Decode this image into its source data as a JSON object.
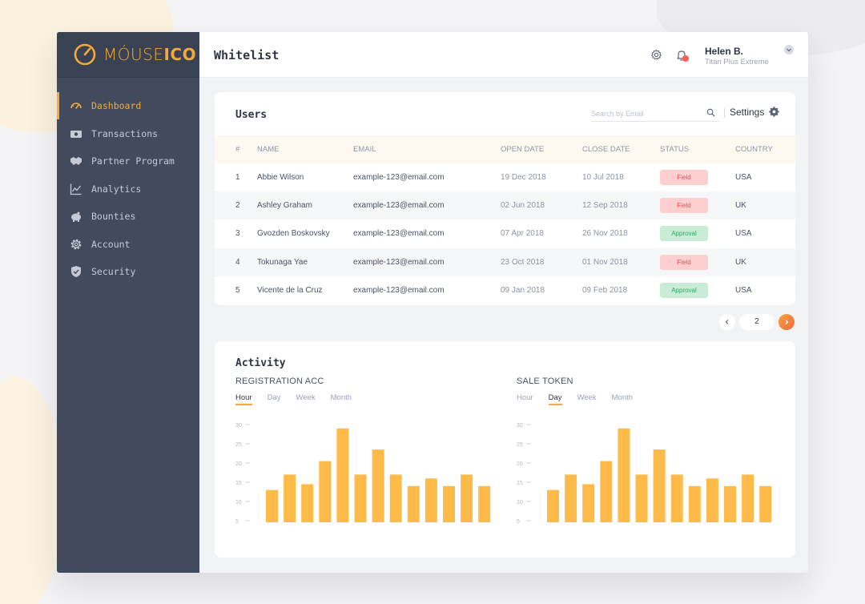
{
  "app": {
    "logo": {
      "text_light": "MÓUSE",
      "text_bold": "ICO"
    }
  },
  "sidebar": {
    "items": [
      {
        "label": "Dashboard",
        "icon": "gauge-icon",
        "active": true
      },
      {
        "label": "Transactions",
        "icon": "money-icon",
        "active": false
      },
      {
        "label": "Partner Program",
        "icon": "handshake-icon",
        "active": false
      },
      {
        "label": "Analytics",
        "icon": "line-chart-icon",
        "active": false
      },
      {
        "label": "Bounties",
        "icon": "piggy-bank-icon",
        "active": false
      },
      {
        "label": "Account",
        "icon": "gear-icon",
        "active": false
      },
      {
        "label": "Security",
        "icon": "shield-icon",
        "active": false
      }
    ]
  },
  "header": {
    "title": "Whitelist",
    "user_name": "Helen B.",
    "user_plan": "Titan Plus Extreme"
  },
  "users": {
    "title": "Users",
    "search_placeholder": "Search by Email",
    "settings_label": "Settings",
    "columns": [
      "#",
      "NAME",
      "EMAIL",
      "OPEN DATE",
      "CLOSE DATE",
      "STATUS",
      "COUNTRY"
    ],
    "rows": [
      {
        "num": "1",
        "name": "Abbie Wilson",
        "email": "example-123@email.com",
        "open": "19 Dec 2018",
        "close": "10 Jul 2018",
        "status": "Field",
        "country": "USA"
      },
      {
        "num": "2",
        "name": "Ashley Graham",
        "email": "example-123@email.com",
        "open": "02 Jun 2018",
        "close": "12 Sep 2018",
        "status": "Field",
        "country": "UK"
      },
      {
        "num": "3",
        "name": "Gvozden Boskovsky",
        "email": "example-123@email.com",
        "open": "07 Apr 2018",
        "close": "26 Nov 2018",
        "status": "Approval",
        "country": "USA"
      },
      {
        "num": "4",
        "name": "Tokunaga Yae",
        "email": "example-123@email.com",
        "open": "23 Oct 2018",
        "close": "01 Nov 2018",
        "status": "Field",
        "country": "UK"
      },
      {
        "num": "5",
        "name": "Vicente de la Cruz",
        "email": "example-123@email.com",
        "open": "09 Jan 2018",
        "close": "09 Feb 2018",
        "status": "Approval",
        "country": "USA"
      }
    ],
    "status_colors": {
      "Field": {
        "bg": "#ffcfd0",
        "fg": "#f04a4f"
      },
      "Approval": {
        "bg": "#c8ecd6",
        "fg": "#34a869"
      }
    }
  },
  "pagination": {
    "current": "2"
  },
  "activity": {
    "title": "Activity",
    "accent": "#ffbb4a"
  },
  "chart_data": [
    {
      "type": "bar",
      "title": "REGISTRATION ACC",
      "tabs": [
        "Hour",
        "Day",
        "Week",
        "Month"
      ],
      "active_tab": "Hour",
      "y_ticks": [
        "30",
        "25",
        "20",
        "15",
        "10",
        "5"
      ],
      "ylim": [
        5,
        30
      ],
      "values": [
        13,
        17,
        14.5,
        20.5,
        29,
        17,
        23.5,
        17,
        14,
        16,
        14,
        17,
        14
      ]
    },
    {
      "type": "bar",
      "title": "SALE TOKEN",
      "tabs": [
        "Hour",
        "Day",
        "Week",
        "Month"
      ],
      "active_tab": "Day",
      "y_ticks": [
        "30",
        "25",
        "20",
        "15",
        "10",
        "5"
      ],
      "ylim": [
        5,
        30
      ],
      "values": [
        13,
        17,
        14.5,
        20.5,
        29,
        17,
        23.5,
        17,
        14,
        16,
        14,
        17,
        14
      ]
    }
  ]
}
